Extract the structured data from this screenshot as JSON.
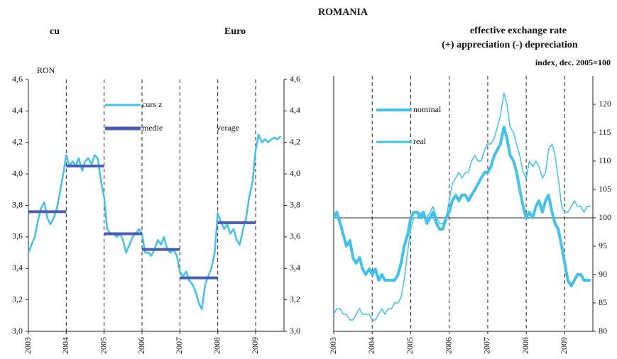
{
  "chart_data": [
    {
      "type": "line",
      "title": [
        "cu",
        "Euro"
      ],
      "axis_label": "RON",
      "annotation": "verage",
      "x": [
        2003,
        2003.08,
        2003.17,
        2003.25,
        2003.33,
        2003.42,
        2003.5,
        2003.58,
        2003.67,
        2003.75,
        2003.83,
        2003.92,
        2004,
        2004.08,
        2004.17,
        2004.25,
        2004.33,
        2004.42,
        2004.5,
        2004.58,
        2004.67,
        2004.75,
        2004.83,
        2004.92,
        2005,
        2005.08,
        2005.17,
        2005.25,
        2005.33,
        2005.42,
        2005.5,
        2005.58,
        2005.67,
        2005.75,
        2005.83,
        2005.92,
        2006,
        2006.08,
        2006.17,
        2006.25,
        2006.33,
        2006.42,
        2006.5,
        2006.58,
        2006.67,
        2006.75,
        2006.83,
        2006.92,
        2007,
        2007.08,
        2007.17,
        2007.25,
        2007.33,
        2007.42,
        2007.5,
        2007.58,
        2007.67,
        2007.75,
        2007.83,
        2007.92,
        2008,
        2008.08,
        2008.17,
        2008.25,
        2008.33,
        2008.42,
        2008.5,
        2008.58,
        2008.67,
        2008.75,
        2008.83,
        2008.92,
        2009,
        2009.08,
        2009.17,
        2009.25,
        2009.33,
        2009.42,
        2009.5,
        2009.58,
        2009.67
      ],
      "series": [
        {
          "name": "curs z",
          "color": "#3fc2ee",
          "values": [
            3.5,
            3.55,
            3.6,
            3.7,
            3.78,
            3.82,
            3.72,
            3.68,
            3.72,
            3.78,
            3.88,
            4.0,
            4.12,
            4.05,
            4.08,
            4.05,
            4.1,
            4.02,
            4.08,
            4.1,
            4.06,
            4.12,
            4.1,
            3.95,
            3.85,
            3.65,
            3.62,
            3.62,
            3.6,
            3.62,
            3.58,
            3.5,
            3.55,
            3.6,
            3.62,
            3.65,
            3.62,
            3.5,
            3.5,
            3.48,
            3.52,
            3.58,
            3.55,
            3.6,
            3.52,
            3.5,
            3.52,
            3.48,
            3.38,
            3.35,
            3.38,
            3.32,
            3.3,
            3.25,
            3.18,
            3.14,
            3.3,
            3.35,
            3.4,
            3.5,
            3.75,
            3.7,
            3.65,
            3.68,
            3.62,
            3.65,
            3.58,
            3.55,
            3.65,
            3.72,
            3.85,
            3.95,
            4.15,
            4.25,
            4.2,
            4.22,
            4.2,
            4.22,
            4.23,
            4.22,
            4.24
          ]
        },
        {
          "name": "medie",
          "color": "#4a5db0",
          "style": "step",
          "x": [
            2003,
            2004,
            2005,
            2006,
            2007,
            2008
          ],
          "values": [
            3.76,
            4.05,
            3.62,
            3.52,
            3.34,
            3.69
          ]
        }
      ],
      "xlim": [
        2003,
        2009.75
      ],
      "xticks": [
        2003,
        2004,
        2005,
        2006,
        2007,
        2008,
        2009
      ],
      "ylim": [
        3.0,
        4.6
      ],
      "yticks": [
        {
          "value": 3.0,
          "label": "3,0"
        },
        {
          "value": 3.2,
          "label": "3,2"
        },
        {
          "value": 3.4,
          "label": "3,4"
        },
        {
          "value": 3.6,
          "label": "3,6"
        },
        {
          "value": 3.8,
          "label": "3,8"
        },
        {
          "value": 4.0,
          "label": "4,0"
        },
        {
          "value": 4.2,
          "label": "4,2"
        },
        {
          "value": 4.4,
          "label": "4,4"
        },
        {
          "value": 4.6,
          "label": "4,6"
        }
      ],
      "y2lim": [
        3.0,
        4.6
      ],
      "y2ticks": [
        {
          "value": 3.0,
          "label": "3,0"
        },
        {
          "value": 3.2,
          "label": "3,2"
        },
        {
          "value": 3.4,
          "label": "3,4"
        },
        {
          "value": 3.6,
          "label": "3,6"
        },
        {
          "value": 3.8,
          "label": "3,8"
        },
        {
          "value": 4.0,
          "label": "4,0"
        },
        {
          "value": 4.2,
          "label": "4,2"
        },
        {
          "value": 4.4,
          "label": "4,4"
        },
        {
          "value": 4.6,
          "label": "4,6"
        }
      ]
    },
    {
      "type": "line",
      "title": [
        "effective exchange rate",
        "(+) appreciation (-) depreciation"
      ],
      "subtitle": "index, dec. 2005=100",
      "x": [
        2003,
        2003.08,
        2003.17,
        2003.25,
        2003.33,
        2003.42,
        2003.5,
        2003.58,
        2003.67,
        2003.75,
        2003.83,
        2003.92,
        2004,
        2004.08,
        2004.17,
        2004.25,
        2004.33,
        2004.42,
        2004.5,
        2004.58,
        2004.67,
        2004.75,
        2004.83,
        2004.92,
        2005,
        2005.08,
        2005.17,
        2005.25,
        2005.33,
        2005.42,
        2005.5,
        2005.58,
        2005.67,
        2005.75,
        2005.83,
        2005.92,
        2006,
        2006.08,
        2006.17,
        2006.25,
        2006.33,
        2006.42,
        2006.5,
        2006.58,
        2006.67,
        2006.75,
        2006.83,
        2006.92,
        2007,
        2007.08,
        2007.17,
        2007.25,
        2007.33,
        2007.42,
        2007.5,
        2007.58,
        2007.67,
        2007.75,
        2007.83,
        2007.92,
        2008,
        2008.08,
        2008.17,
        2008.25,
        2008.33,
        2008.42,
        2008.5,
        2008.58,
        2008.67,
        2008.75,
        2008.83,
        2008.92,
        2009,
        2009.08,
        2009.17,
        2009.25,
        2009.33,
        2009.42,
        2009.5,
        2009.58,
        2009.67
      ],
      "series": [
        {
          "name": "nominal",
          "color": "#3fc2ee",
          "width": 4,
          "values": [
            100,
            101,
            99,
            97,
            95,
            96,
            93,
            92,
            93,
            91,
            90,
            91,
            90,
            91,
            89,
            90,
            89,
            89,
            89,
            89,
            90,
            92,
            95,
            97,
            100,
            101,
            101,
            100,
            101,
            99,
            100,
            101,
            99,
            98,
            98,
            100,
            101,
            103,
            104,
            103,
            104,
            104,
            103,
            104,
            105,
            106,
            107,
            108,
            108,
            109,
            111,
            112,
            113,
            116,
            114,
            111,
            110,
            108,
            105,
            102,
            100,
            101,
            100,
            102,
            103,
            101,
            103,
            104,
            101,
            99,
            98,
            95,
            92,
            89,
            88,
            89,
            90,
            90,
            89,
            89,
            89
          ]
        },
        {
          "name": "real",
          "color": "#3fc2ee",
          "width": 1.5,
          "values": [
            83,
            84,
            84,
            83,
            83,
            82,
            82,
            83,
            84,
            83,
            83,
            83,
            82,
            82,
            83,
            84,
            83,
            84,
            84,
            85,
            85,
            86,
            89,
            94,
            98,
            100,
            100,
            101,
            100,
            100,
            101,
            102,
            100,
            99,
            99,
            100,
            103,
            106,
            107,
            108,
            107,
            108,
            108,
            110,
            111,
            110,
            110,
            112,
            113,
            113,
            114,
            116,
            118,
            122,
            120,
            116,
            115,
            113,
            111,
            108,
            107,
            110,
            109,
            110,
            109,
            107,
            108,
            112,
            113,
            111,
            107,
            102,
            101,
            101,
            102,
            103,
            102,
            102,
            101,
            102,
            102
          ]
        }
      ],
      "reference_line": 100,
      "xlim": [
        2003,
        2009.73
      ],
      "xticks": [
        2003,
        2004,
        2005,
        2006,
        2007,
        2008,
        2009
      ],
      "ylim": [
        80,
        125
      ],
      "yticks": [
        80,
        85,
        90,
        95,
        100,
        105,
        110,
        115,
        120
      ]
    }
  ],
  "header": {
    "title": "ROMANIA"
  }
}
